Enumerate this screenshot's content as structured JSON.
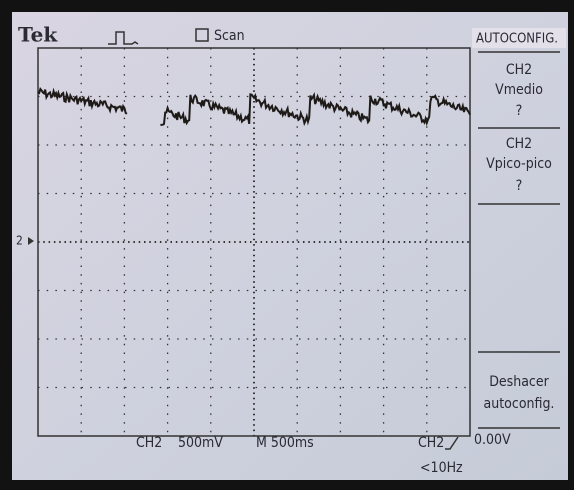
{
  "header": {
    "brand": "Tek",
    "mode": "Scan"
  },
  "menu": {
    "title": "AUTOCONFIG.",
    "items": [
      {
        "lines": [
          "CH2",
          "Vmedio",
          "?"
        ]
      },
      {
        "lines": [
          "CH2",
          "Vpico-pico",
          "?"
        ]
      },
      {
        "lines": [
          "Deshacer",
          "autoconfig."
        ]
      }
    ]
  },
  "marker": "2",
  "footer": {
    "channel": "CH2",
    "scale": "500mV",
    "timebase": "M 500ms",
    "trigger_source": "CH2",
    "trigger_level": "0.00V",
    "frequency": "<10Hz"
  }
}
